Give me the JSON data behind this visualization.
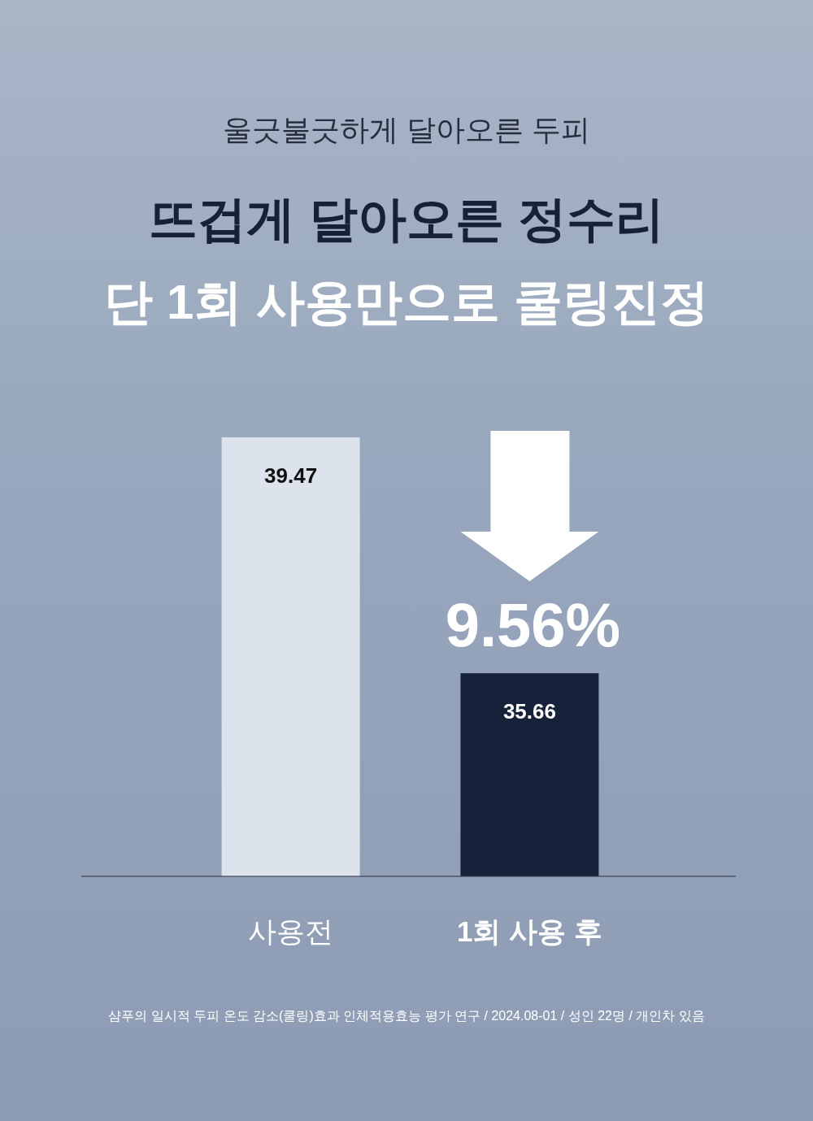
{
  "chart_data": {
    "type": "bar",
    "title": "뜨겁게 달아오른 정수리",
    "subtitle": "단 1회 사용만으로 쿨링진정",
    "categories": [
      "사용전",
      "1회 사용 후"
    ],
    "values": [
      39.47,
      35.66
    ],
    "colors": [
      "#dce3ed",
      "#16213a"
    ],
    "ylim": [
      32.38,
      39.47
    ],
    "data_labels": true,
    "annotations": [
      "울긋불긋하게 달아오른 두피",
      "9.56%",
      "샴푸의 일시적 두피 온도 감소(쿨링)효과 인체적용효능 평가 연구 / 2024.08-01 / 성인 22명 / 개인차 있음"
    ]
  }
}
